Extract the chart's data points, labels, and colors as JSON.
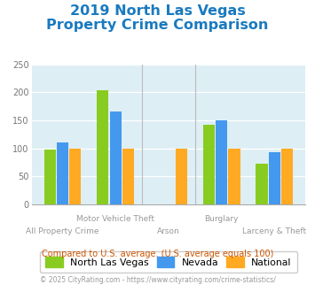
{
  "title_line1": "2019 North Las Vegas",
  "title_line2": "Property Crime Comparison",
  "title_color": "#1a7abf",
  "title_fontsize": 11.5,
  "x_label_top": [
    "",
    "Motor Vehicle Theft",
    "",
    "Burglary",
    ""
  ],
  "x_label_bottom": [
    "All Property Crime",
    "",
    "Arson",
    "",
    "Larceny & Theft"
  ],
  "nlv_values": [
    98,
    203,
    0,
    142,
    73
  ],
  "nevada_values": [
    110,
    165,
    0,
    150,
    93
  ],
  "national_values": [
    100,
    100,
    100,
    100,
    100
  ],
  "nlv_color": "#88cc22",
  "nevada_color": "#4499ee",
  "national_color": "#ffaa22",
  "plot_bg": "#ddeef5",
  "ylim": [
    0,
    250
  ],
  "yticks": [
    0,
    50,
    100,
    150,
    200,
    250
  ],
  "legend_labels": [
    "North Las Vegas",
    "Nevada",
    "National"
  ],
  "footnote1": "Compared to U.S. average. (U.S. average equals 100)",
  "footnote2": "© 2025 CityRating.com - https://www.cityrating.com/crime-statistics/",
  "footnote1_color": "#cc5500",
  "footnote2_color": "#999999",
  "bar_width": 0.22,
  "separator_color": "#bbbbbb",
  "grid_color": "#ffffff",
  "spine_color": "#aaaaaa"
}
